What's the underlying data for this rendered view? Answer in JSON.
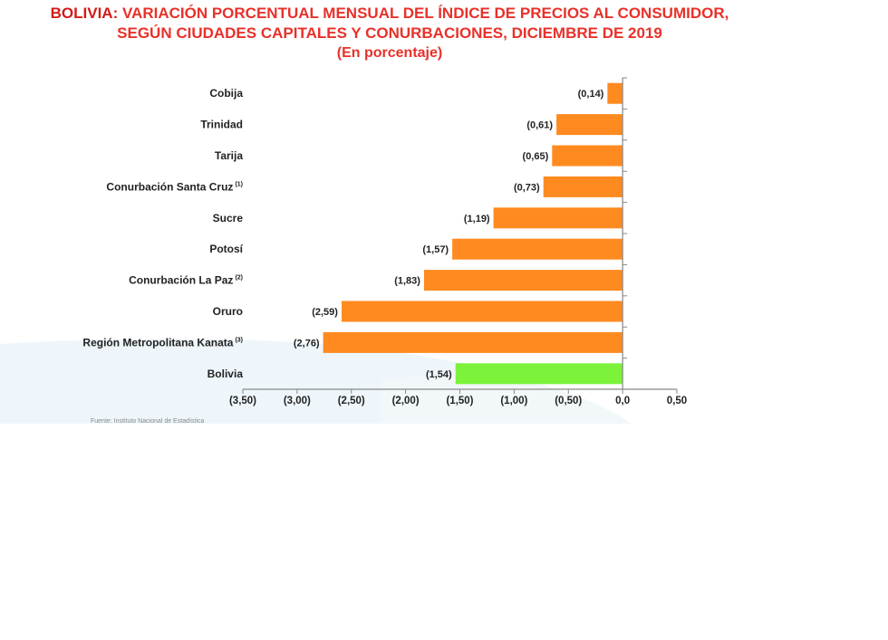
{
  "title": {
    "prefix": "BOLIVIA:",
    "line1": "VARIACIÓN PORCENTUAL MENSUAL DEL ÍNDICE DE PRECIOS AL CONSUMIDOR,",
    "line2": "SEGÚN CIUDADES CAPITALES Y CONURBACIONES, DICIEMBRE DE 2019",
    "line3": "(En porcentaje)"
  },
  "chart_data": {
    "type": "bar",
    "orientation": "horizontal",
    "categories": [
      "Cobija",
      "Trinidad",
      "Tarija",
      "Conurbación Santa Cruz",
      "Sucre",
      "Potosí",
      "Conurbación La Paz",
      "Oruro",
      "Región Metropolitana Kanata",
      "Bolivia"
    ],
    "superscripts": [
      "",
      "",
      "",
      "(1)",
      "",
      "",
      "(2)",
      "",
      "(3)",
      ""
    ],
    "values": [
      -0.14,
      -0.61,
      -0.65,
      -0.73,
      -1.19,
      -1.57,
      -1.83,
      -2.59,
      -2.76,
      -1.54
    ],
    "value_labels": [
      "(0,14)",
      "(0,61)",
      "(0,65)",
      "(0,73)",
      "(1,19)",
      "(1,57)",
      "(1,83)",
      "(2,59)",
      "(2,76)",
      "(1,54)"
    ],
    "bar_colors": [
      "#ff8a1f",
      "#ff8a1f",
      "#ff8a1f",
      "#ff8a1f",
      "#ff8a1f",
      "#ff8a1f",
      "#ff8a1f",
      "#ff8a1f",
      "#ff8a1f",
      "#7cf23a"
    ],
    "xlim": [
      -3.5,
      0.5
    ],
    "xticks": [
      -3.5,
      -3.0,
      -2.5,
      -2.0,
      -1.5,
      -1.0,
      -0.5,
      0.0,
      0.5
    ],
    "xtick_labels": [
      "(3,50)",
      "(3,00)",
      "(2,50)",
      "(2,00)",
      "(1,50)",
      "(1,00)",
      "(0,50)",
      "0,0",
      "0,50"
    ],
    "grid": false,
    "xlabel": "",
    "ylabel": ""
  },
  "source_note": "Fuente: Instituto Nacional de Estadística"
}
